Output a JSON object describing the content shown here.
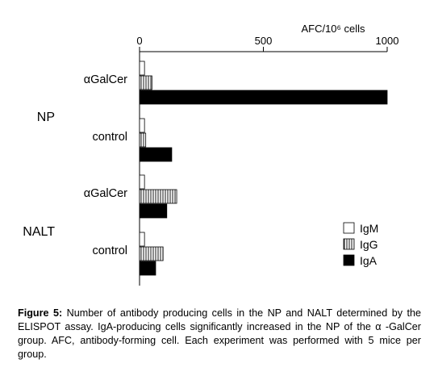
{
  "chart_data": {
    "type": "bar",
    "orientation": "horizontal",
    "x_axis_position": "top",
    "axis_title": "AFC/10⁶ cells",
    "xlim": [
      0,
      1000
    ],
    "ticks": [
      "0",
      "500",
      "1000"
    ],
    "grid": false,
    "legend_placement": "bottom-right",
    "groups": [
      {
        "label": "NP",
        "categories": [
          {
            "label": "αGalCer",
            "values": {
              "IgM": 20,
              "IgG": 50,
              "IgA": 1000
            }
          },
          {
            "label": "control",
            "values": {
              "IgM": 20,
              "IgG": 25,
              "IgA": 130
            }
          }
        ]
      },
      {
        "label": "NALT",
        "categories": [
          {
            "label": "αGalCer",
            "values": {
              "IgM": 20,
              "IgG": 150,
              "IgA": 110
            }
          },
          {
            "label": "control",
            "values": {
              "IgM": 20,
              "IgG": 95,
              "IgA": 65
            }
          }
        ]
      }
    ],
    "series": [
      {
        "name": "IgM",
        "fill": "#ffffff",
        "pattern": "none"
      },
      {
        "name": "IgG",
        "fill": "#ffffff",
        "pattern": "vertical-hatch"
      },
      {
        "name": "IgA",
        "fill": "#000000",
        "pattern": "none"
      }
    ]
  },
  "caption": {
    "label": "Figure 5:",
    "text": " Number of antibody producing cells in the NP and NALT determined by the ELISPOT assay. IgA-producing cells significantly increased in the NP of the α -GalCer group. AFC, antibody-forming cell. Each experiment was performed with 5 mice per group."
  }
}
